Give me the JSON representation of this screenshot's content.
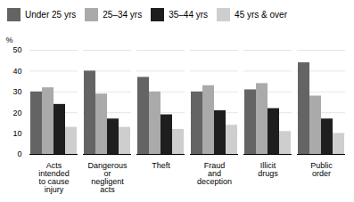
{
  "chart_data": {
    "type": "bar",
    "categories": [
      "Acts\nintended\nto cause\ninjury",
      "Dangerous\nor\nnegligent\nacts",
      "Theft",
      "Fraud\nand\ndeception",
      "Illicit\ndrugs",
      "Public\norder"
    ],
    "series": [
      {
        "name": "Under 25 yrs",
        "color": "#646464",
        "values": [
          30,
          40,
          37,
          30,
          31,
          44
        ]
      },
      {
        "name": "25–34 yrs",
        "color": "#aaaaaa",
        "values": [
          32,
          29,
          30,
          33,
          34,
          28
        ]
      },
      {
        "name": "35–44 yrs",
        "color": "#1e1e1e",
        "values": [
          24,
          17,
          19,
          21,
          22,
          17
        ]
      },
      {
        "name": "45 yrs & over",
        "color": "#cecece",
        "values": [
          13,
          13,
          12,
          14,
          11,
          10
        ]
      }
    ],
    "ylabel": "%",
    "ylim": [
      0,
      50
    ],
    "yticks": [
      0,
      10,
      20,
      30,
      40,
      50
    ],
    "grid": true,
    "legend": "upper left"
  }
}
